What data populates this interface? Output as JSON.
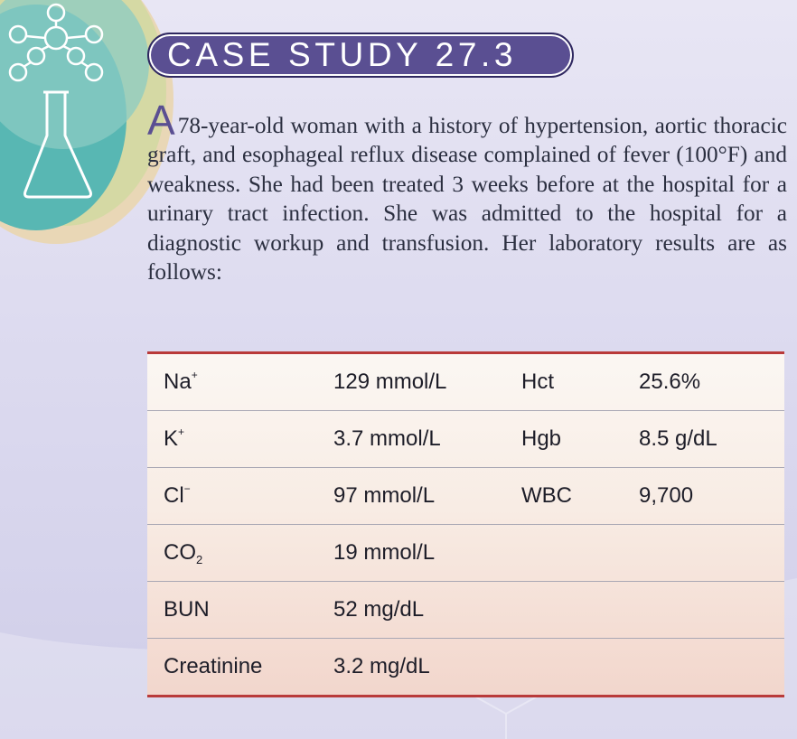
{
  "header": {
    "title": "CASE STUDY 27.3"
  },
  "case": {
    "drop_cap": "A",
    "body": "78-year-old woman with a history of hypertension, aortic thoracic graft, and esophageal reflux disease com­plained of fever (100°F) and weakness. She had been treated 3 weeks before at the hospital for a urinary tract infection. She was admitted to the hospital for a diagnostic workup and transfusion. Her laboratory results are as follows:"
  },
  "lab_table": {
    "rows": [
      {
        "analyte": "Na",
        "analyte_mark": "+",
        "value": "129 mmol/L",
        "analyte2": "Hct",
        "value2": "25.6%"
      },
      {
        "analyte": "K",
        "analyte_mark": "+",
        "value": "3.7 mmol/L",
        "analyte2": "Hgb",
        "value2": "8.5 g/dL"
      },
      {
        "analyte": "Cl",
        "analyte_mark": "−",
        "value": "97 mmol/L",
        "analyte2": "WBC",
        "value2": "9,700"
      },
      {
        "analyte": "CO",
        "analyte_sub": "2",
        "value": "19 mmol/L"
      },
      {
        "analyte": "BUN",
        "value": "52 mg/dL"
      },
      {
        "analyte": "Creatinine",
        "value": "3.2 mg/dL"
      }
    ]
  },
  "icons": [
    "molecule-icon",
    "flask-icon"
  ],
  "colors": {
    "accent": "#5a4f92",
    "rule": "#b93a3a",
    "text": "#2b2f40"
  }
}
